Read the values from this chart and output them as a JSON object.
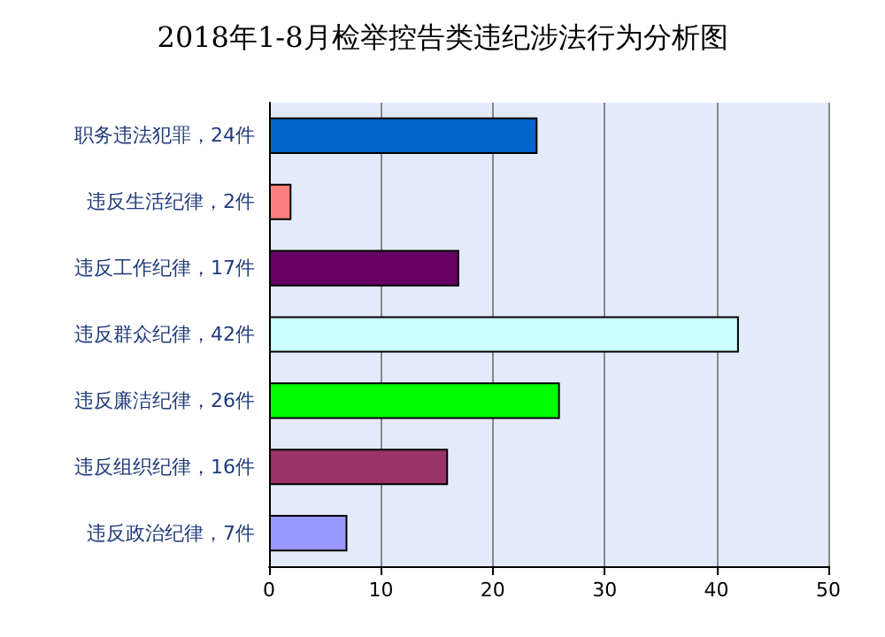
{
  "chart_data": {
    "type": "bar",
    "title": "2018年1-8月检举控告类违纪涉法行为分析图",
    "orientation": "horizontal",
    "categories": [
      "职务违法犯罪，24件",
      "违反生活纪律，2件",
      "违反工作纪律，17件",
      "违反群众纪律，42件",
      "违反廉洁纪律，26件",
      "违反组织纪律，16件",
      "违反政治纪律，7件"
    ],
    "values": [
      24,
      2,
      17,
      42,
      26,
      16,
      7
    ],
    "colors": [
      "#0066cc",
      "#ff8080",
      "#660066",
      "#ccffff",
      "#00ff00",
      "#993366",
      "#9999ff"
    ],
    "xlim": [
      0,
      50
    ],
    "xticks": [
      0,
      10,
      20,
      30,
      40,
      50
    ],
    "grid": "x"
  }
}
